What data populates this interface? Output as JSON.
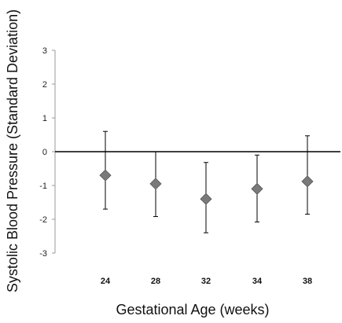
{
  "chart_data": {
    "type": "scatter",
    "title": "",
    "xlabel": "Gestational Age (weeks)",
    "ylabel": "Systolic Blood Pressure (Standard Deviation)",
    "categories": [
      "24",
      "28",
      "32",
      "34",
      "38"
    ],
    "ylim": [
      -3,
      3
    ],
    "yticks": [
      3,
      2,
      1,
      0,
      -1,
      -2,
      -3
    ],
    "grid": false,
    "legend": "none",
    "marker": "diamond",
    "marker_color": "#7a7a7a",
    "series": [
      {
        "values": [
          -0.7,
          -0.95,
          -1.4,
          -1.1,
          -0.88
        ],
        "error_low": [
          -1.7,
          -1.92,
          -2.4,
          -2.08,
          -1.85
        ],
        "error_high": [
          0.6,
          0.0,
          -0.32,
          -0.1,
          0.47
        ]
      }
    ]
  }
}
